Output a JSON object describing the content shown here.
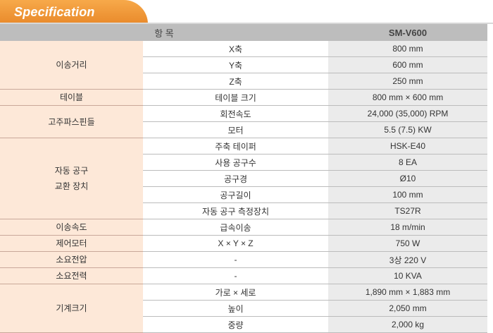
{
  "header": {
    "title": "Specification"
  },
  "columns": {
    "item": "항        목",
    "value": "SM-V600"
  },
  "groups": [
    {
      "name": "이송거리",
      "rows": [
        {
          "item": "X축",
          "value": "800 mm"
        },
        {
          "item": "Y축",
          "value": "600 mm"
        },
        {
          "item": "Z축",
          "value": "250 mm"
        }
      ]
    },
    {
      "name": "테이블",
      "rows": [
        {
          "item": "테이블 크기",
          "value": "800 mm × 600 mm"
        }
      ]
    },
    {
      "name": "고주파스핀들",
      "rows": [
        {
          "item": "회전속도",
          "value": "24,000 (35,000) RPM"
        },
        {
          "item": "모터",
          "value": "5.5 (7.5) KW"
        }
      ]
    },
    {
      "name": "자동 공구\n교환 장치",
      "rows": [
        {
          "item": "주축 테이퍼",
          "value": "HSK-E40"
        },
        {
          "item": "사용 공구수",
          "value": "8 EA"
        },
        {
          "item": "공구경",
          "value": "Ø10"
        },
        {
          "item": "공구길이",
          "value": "100 mm"
        },
        {
          "item": "자동 공구 측정장치",
          "value": "TS27R"
        }
      ]
    },
    {
      "name": "이송속도",
      "rows": [
        {
          "item": "급속이송",
          "value": "18 m/min"
        }
      ]
    },
    {
      "name": "제어모터",
      "rows": [
        {
          "item": "X × Y × Z",
          "value": "750 W"
        }
      ]
    },
    {
      "name": "소요전압",
      "rows": [
        {
          "item": "-",
          "value": "3상 220 V"
        }
      ]
    },
    {
      "name": "소요전력",
      "rows": [
        {
          "item": "-",
          "value": "10 KVA"
        }
      ]
    },
    {
      "name": "기계크기",
      "rows": [
        {
          "item": "가로 × 세로",
          "value": "1,890 mm × 1,883 mm"
        },
        {
          "item": "높이",
          "value": "2,050 mm"
        },
        {
          "item": "중량",
          "value": "2,000 kg"
        }
      ]
    }
  ],
  "colors": {
    "accent": "#f29a3a",
    "category_bg": "#fde8d8",
    "header_bg": "#bdbdbd",
    "value_bg": "#ebebeb"
  }
}
